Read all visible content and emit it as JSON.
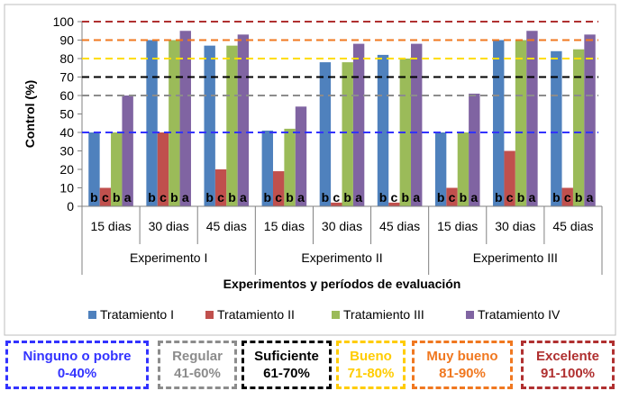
{
  "chart_data": {
    "type": "bar",
    "title": "",
    "ylabel": "Control (%)",
    "xlabel": "Experimentos y períodos de evaluación",
    "ylim": [
      0,
      100
    ],
    "yticks": [
      0,
      10,
      20,
      30,
      40,
      50,
      60,
      70,
      80,
      90,
      100
    ],
    "groups": [
      {
        "experiment": "Experimento I",
        "periods": [
          "15 dias",
          "30 dias",
          "45 dias"
        ]
      },
      {
        "experiment": "Experimento II",
        "periods": [
          "15 dias",
          "30 dias",
          "45 dias"
        ]
      },
      {
        "experiment": "Experimento III",
        "periods": [
          "15 dias",
          "30 dias",
          "45 dias"
        ]
      }
    ],
    "series": [
      {
        "name": "Tratamiento I",
        "color": "#4f81bd",
        "values": [
          40,
          90,
          87,
          41,
          78,
          82,
          40,
          90,
          84
        ]
      },
      {
        "name": "Tratamiento II",
        "color": "#c0504d",
        "values": [
          10,
          40,
          20,
          19,
          2,
          2,
          10,
          30,
          10
        ]
      },
      {
        "name": "Tratamiento III",
        "color": "#9bbb59",
        "values": [
          40,
          90,
          87,
          42,
          78,
          80,
          40,
          90,
          85
        ]
      },
      {
        "name": "Tratamiento IV",
        "color": "#8064a2",
        "values": [
          60,
          95,
          93,
          54,
          88,
          88,
          61,
          95,
          93
        ]
      }
    ],
    "letters": [
      [
        "b",
        "c",
        "b",
        "a"
      ],
      [
        "b",
        "c",
        "b",
        "a"
      ],
      [
        "b",
        "c",
        "b",
        "a"
      ],
      [
        "b",
        "c",
        "b",
        "a"
      ],
      [
        "b",
        "c",
        "b",
        "a"
      ],
      [
        "b",
        "c",
        "b",
        "a"
      ],
      [
        "b",
        "c",
        "b",
        "a"
      ],
      [
        "b",
        "c",
        "b",
        "a"
      ],
      [
        "b",
        "c",
        "b",
        "a"
      ]
    ],
    "reference_lines": [
      {
        "value": 40,
        "color": "#3333ff"
      },
      {
        "value": 60,
        "color": "#8c8c8c"
      },
      {
        "value": 70,
        "color": "#000000"
      },
      {
        "value": 80,
        "color": "#ffdd00"
      },
      {
        "value": 90,
        "color": "#f07820"
      },
      {
        "value": 100,
        "color": "#b03030"
      }
    ],
    "legend_position": "bottom",
    "grid": false
  },
  "categories_boxes": [
    {
      "label": "Ninguno o pobre",
      "range": "0-40%",
      "color": "#3333ff"
    },
    {
      "label": "Regular",
      "range": "41-60%",
      "color": "#8c8c8c"
    },
    {
      "label": "Suficiente",
      "range": "61-70%",
      "color": "#000000"
    },
    {
      "label": "Bueno",
      "range": "71-80%",
      "color": "#ffcc00"
    },
    {
      "label": "Muy bueno",
      "range": "81-90%",
      "color": "#f07820"
    },
    {
      "label": "Excelente",
      "range": "91-100%",
      "color": "#b03030"
    }
  ]
}
